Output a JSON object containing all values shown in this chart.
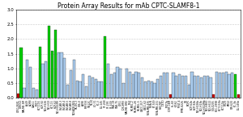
{
  "title": "Protein Array Results for mAb CPTC-SLAMF8-1",
  "ylim": [
    0.0,
    3.0
  ],
  "yticks": [
    0.0,
    0.5,
    1.0,
    1.5,
    2.0,
    2.5,
    3.0
  ],
  "ytick_labels": [
    "0.0",
    "0.5",
    "1.0",
    "1.5",
    "2.0",
    "2.5",
    "3.0"
  ],
  "cell_lines": [
    "U251-MN1",
    "IGROV1",
    "MALME-3M",
    "A549",
    "ACHN",
    "CAKI-1",
    "MCF7",
    "HCT-116",
    "HOP-92",
    "NCI-H226",
    "NCI-H23",
    "HCT-15",
    "HOP-62",
    "NCI-H322M",
    "OVCAR-3",
    "OVCAR-4",
    "OVCAR-5",
    "OVCAR-8",
    "NCI/ADR-RES",
    "SK-OV-3",
    "786-0",
    "A498",
    "RXF393",
    "SN12C",
    "TK-10",
    "UO-31",
    "PC-3",
    "DU-145",
    "SF-268",
    "SF-295",
    "SF-539",
    "SNB-19",
    "SNB-75",
    "U251",
    "LOX-IMVI",
    "MALME-3M2",
    "M14",
    "SK-MEL-2",
    "SK-MEL-28",
    "SK-MEL-5",
    "UACC-257",
    "UACC-62",
    "MDA-MB-435",
    "MDA-N",
    "BT-549",
    "MDA-MB-231",
    "HS578T",
    "T-47D",
    "MCF7b",
    "CCRF-CEM",
    "HL-60",
    "K-562",
    "MOLT-4",
    "RPMI-8226",
    "SR",
    "EKVX",
    "HOP-62b",
    "HOP-92b",
    "NCI-H226b",
    "NCI-H23b",
    "NCI-H322Mb",
    "NCI-H460",
    "NCI-H522",
    "COLO205",
    "HCC-2998",
    "HCT-116b",
    "HCT-15b",
    "HT29",
    "KM12",
    "SW-620",
    "PC-3b",
    "DU-145b"
  ],
  "values": [
    0.15,
    1.72,
    0.35,
    1.3,
    1.05,
    0.35,
    0.28,
    1.75,
    1.15,
    1.25,
    2.45,
    1.6,
    2.3,
    1.55,
    1.55,
    1.35,
    0.45,
    0.95,
    1.3,
    0.6,
    0.55,
    0.8,
    0.4,
    0.75,
    0.7,
    0.65,
    0.55,
    0.55,
    2.08,
    1.15,
    0.8,
    0.85,
    1.05,
    1.0,
    0.5,
    1.0,
    0.9,
    0.8,
    0.9,
    0.85,
    0.7,
    0.55,
    0.6,
    0.55,
    0.5,
    0.65,
    0.75,
    0.85,
    0.85,
    0.12,
    0.85,
    0.75,
    0.8,
    0.75,
    0.75,
    0.45,
    0.9,
    0.75,
    0.75,
    0.7,
    0.75,
    0.75,
    0.7,
    0.12,
    0.9,
    0.85,
    0.85,
    0.9,
    0.8,
    0.85,
    0.8,
    0.12
  ],
  "colors": [
    "#cc0000",
    "#00cc00",
    "#aaccee",
    "#aaccee",
    "#aaccee",
    "#aaccee",
    "#aaccee",
    "#00cc00",
    "#aaccee",
    "#aaccee",
    "#00cc00",
    "#00cc00",
    "#00cc00",
    "#aaccee",
    "#aaccee",
    "#aaccee",
    "#aaccee",
    "#aaccee",
    "#aaccee",
    "#aaccee",
    "#aaccee",
    "#aaccee",
    "#aaccee",
    "#aaccee",
    "#aaccee",
    "#aaccee",
    "#aaccee",
    "#aaccee",
    "#00cc00",
    "#aaccee",
    "#aaccee",
    "#aaccee",
    "#aaccee",
    "#aaccee",
    "#aaccee",
    "#aaccee",
    "#aaccee",
    "#aaccee",
    "#aaccee",
    "#aaccee",
    "#aaccee",
    "#aaccee",
    "#aaccee",
    "#aaccee",
    "#aaccee",
    "#aaccee",
    "#aaccee",
    "#aaccee",
    "#aaccee",
    "#cc0000",
    "#aaccee",
    "#aaccee",
    "#aaccee",
    "#aaccee",
    "#aaccee",
    "#aaccee",
    "#aaccee",
    "#aaccee",
    "#aaccee",
    "#aaccee",
    "#aaccee",
    "#aaccee",
    "#aaccee",
    "#cc0000",
    "#aaccee",
    "#aaccee",
    "#aaccee",
    "#aaccee",
    "#aaccee",
    "#aaccee",
    "#00cc00",
    "#cc0000"
  ],
  "title_fontsize": 5.5,
  "tick_fontsize": 2.2,
  "ytick_fontsize": 4.0,
  "figure_bg": "#ffffff",
  "grid_color": "#999999",
  "grid_style": ":"
}
